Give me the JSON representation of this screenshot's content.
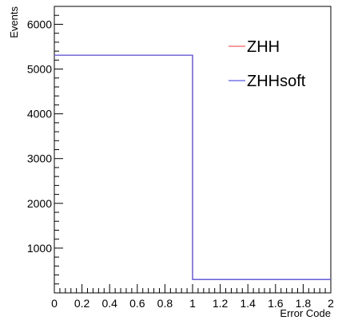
{
  "chart_data": {
    "type": "histogram",
    "xlabel": "Error Code",
    "ylabel": "Events",
    "xlim": [
      0,
      2
    ],
    "ylim": [
      0,
      6400
    ],
    "x_major_ticks": [
      0,
      0.2,
      0.4,
      0.6,
      0.8,
      1,
      1.2,
      1.4,
      1.6,
      1.8,
      2
    ],
    "x_tick_labels": [
      "0",
      "0.2",
      "0.4",
      "0.6",
      "0.8",
      "1",
      "1.2",
      "1.4",
      "1.6",
      "1.8",
      "2"
    ],
    "y_major_ticks": [
      1000,
      2000,
      3000,
      4000,
      5000,
      6000
    ],
    "y_tick_labels": [
      "1000",
      "2000",
      "3000",
      "4000",
      "5000",
      "6000"
    ],
    "grid": false,
    "legend_position": "top-right",
    "series": [
      {
        "name": "ZHH",
        "color": "#ee5f5f",
        "bin_edges": [
          0,
          1,
          2
        ],
        "values": [
          5310,
          300
        ]
      },
      {
        "name": "ZHHsoft",
        "color": "#5a5ae0",
        "bin_edges": [
          0,
          1,
          2
        ],
        "values": [
          5310,
          300
        ]
      }
    ]
  }
}
